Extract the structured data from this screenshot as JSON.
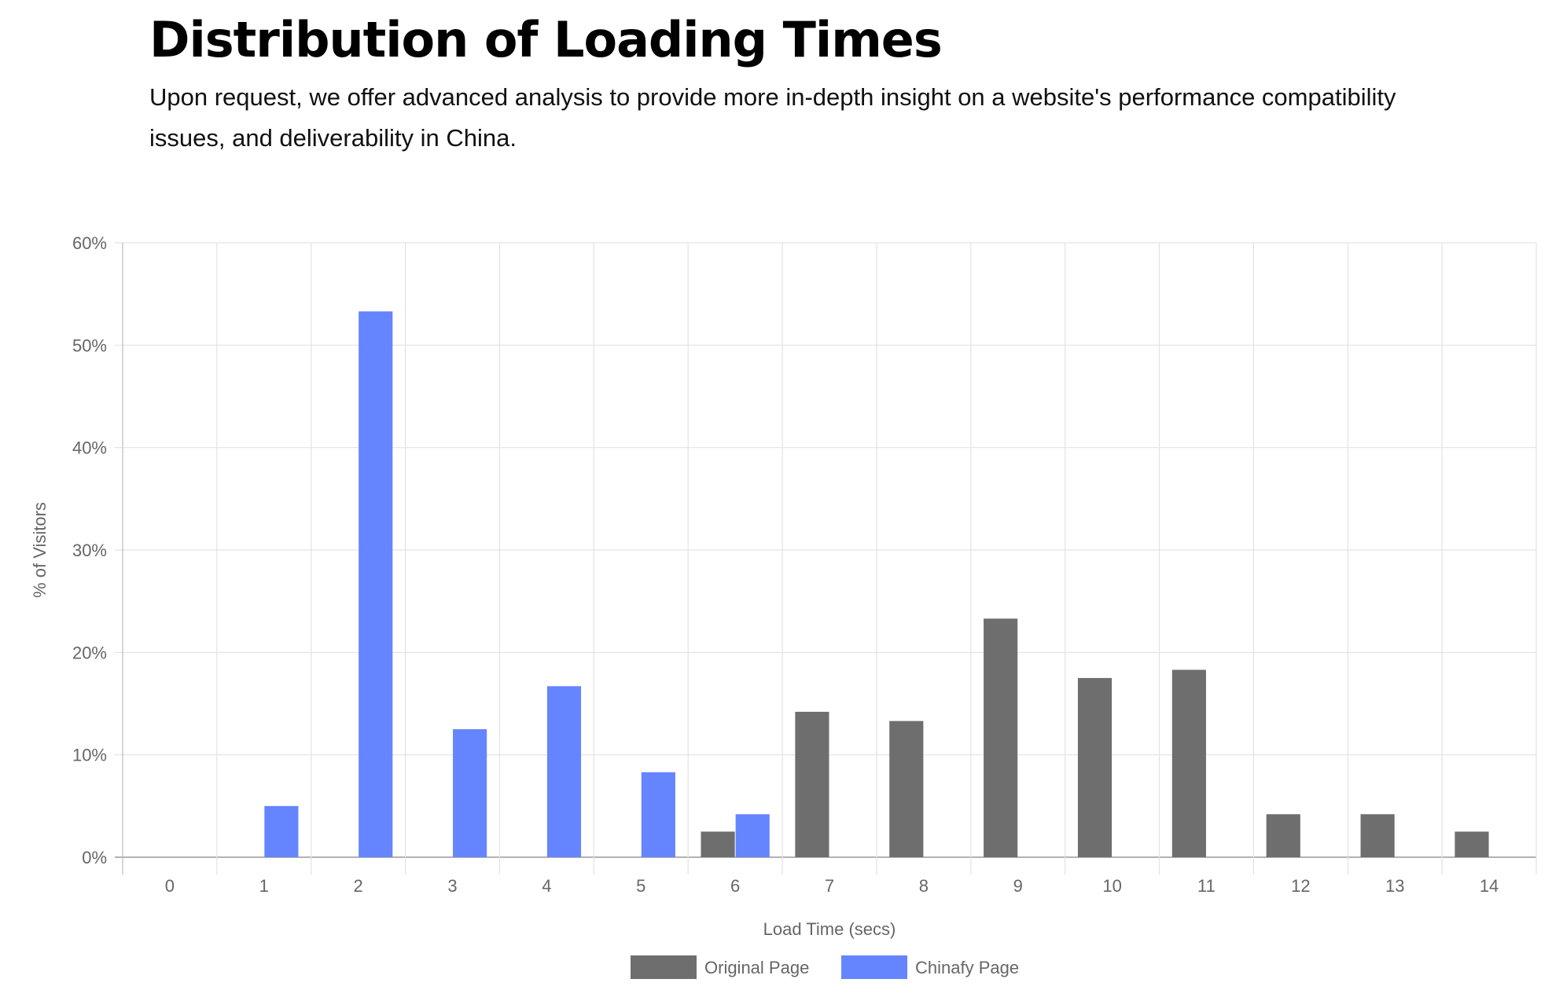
{
  "header": {
    "title": "Distribution of Loading Times",
    "subtitle": "Upon request, we offer advanced analysis to provide more in-depth insight on a website's performance compatibility issues, and deliverability in China."
  },
  "chart_data": {
    "type": "bar",
    "xlabel": "Load Time (secs)",
    "ylabel": "% of Visitors",
    "ylim": [
      0,
      60
    ],
    "y_tick_step": 10,
    "y_tick_suffix": "%",
    "grid": true,
    "legend_position": "bottom-center",
    "categories": [
      "0",
      "1",
      "2",
      "3",
      "4",
      "5",
      "6",
      "7",
      "8",
      "9",
      "10",
      "11",
      "12",
      "13",
      "14"
    ],
    "series": [
      {
        "name": "Original Page",
        "color": "#6e6e6e",
        "values": [
          0,
          0,
          0,
          0,
          0,
          0,
          2.5,
          14.2,
          13.3,
          23.3,
          17.5,
          18.3,
          4.2,
          4.2,
          2.5
        ]
      },
      {
        "name": "Chinafy Page",
        "color": "#6584ff",
        "values": [
          0,
          5.0,
          53.3,
          12.5,
          16.7,
          8.3,
          4.2,
          0,
          0,
          0,
          0,
          0,
          0,
          0,
          0
        ]
      }
    ]
  }
}
